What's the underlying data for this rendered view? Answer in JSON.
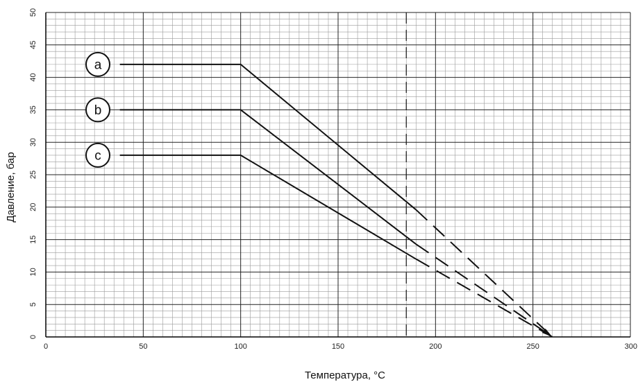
{
  "chart_data": {
    "type": "line",
    "title": "",
    "xlabel": "Температура, °C",
    "ylabel": "Давление, бар",
    "xlim": [
      0,
      300
    ],
    "ylim": [
      0,
      50
    ],
    "grid": true,
    "x_ticks": [
      "0",
      "50",
      "100",
      "150",
      "200",
      "250",
      "300"
    ],
    "y_ticks": [
      "0",
      "5",
      "10",
      "15",
      "20",
      "25",
      "30",
      "35",
      "40",
      "45",
      "50"
    ],
    "temperature_limit_x": 185,
    "end_point": {
      "x": 260,
      "y": 0
    },
    "series": [
      {
        "name": "a",
        "solid": [
          [
            38,
            42
          ],
          [
            100,
            42
          ],
          [
            190,
            19.6
          ]
        ],
        "dashed": [
          [
            190,
            19.6
          ],
          [
            260,
            0
          ]
        ]
      },
      {
        "name": "b",
        "solid": [
          [
            38,
            35
          ],
          [
            100,
            35
          ],
          [
            190,
            14.3
          ]
        ],
        "dashed": [
          [
            190,
            14.3
          ],
          [
            260,
            0
          ]
        ]
      },
      {
        "name": "c",
        "solid": [
          [
            38,
            28
          ],
          [
            100,
            28
          ],
          [
            190,
            12.0
          ]
        ],
        "dashed": [
          [
            190,
            12.0
          ],
          [
            260,
            0
          ]
        ]
      }
    ],
    "colors": {
      "line": "#111111",
      "grid_major": "#222222",
      "grid_minor": "#9a9a9a"
    }
  }
}
